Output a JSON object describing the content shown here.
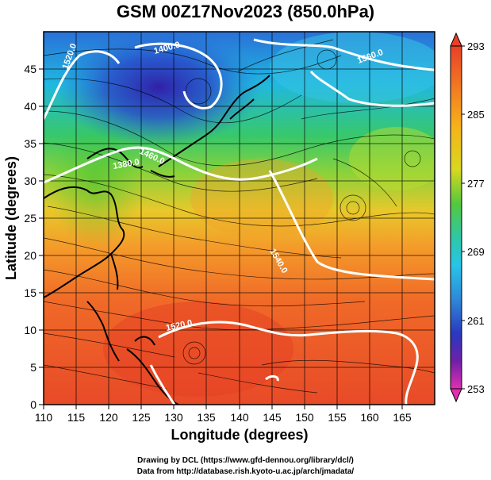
{
  "title": "GSM 00Z17Nov2023 (850.0hPa)",
  "xlabel": "Longitude (degrees)",
  "ylabel": "Latitude  (degrees)",
  "xticks": [
    "110",
    "115",
    "120",
    "125",
    "130",
    "135",
    "140",
    "145",
    "150",
    "155",
    "160",
    "165"
  ],
  "yticks": [
    "0",
    "5",
    "10",
    "15",
    "20",
    "25",
    "30",
    "35",
    "40",
    "45"
  ],
  "colorbar": {
    "ticks": [
      "293",
      "285",
      "277",
      "269",
      "261",
      "253"
    ],
    "colors": [
      "#e8402a",
      "#f07a22",
      "#f6b51a",
      "#d8d820",
      "#59c83a",
      "#2fc8a8",
      "#26c6e6",
      "#2e8cd8",
      "#2a3cc0",
      "#7a20a8",
      "#e030b0"
    ]
  },
  "contour_labels": [
    "1520.0",
    "1400.0",
    "1560.0",
    "1460.0",
    "1380.0",
    "1540.0",
    "1520.0"
  ],
  "credits": {
    "line1": "Drawing by DCL (https://www.gfd-dennou.org/library/dcl/)",
    "line2": "Data from http://database.rish.kyoto-u.ac.jp/arch/jmadata/"
  },
  "map_data": {
    "field": "temperature",
    "range": [
      253,
      293
    ],
    "lon_range": [
      110,
      170
    ],
    "lat_range": [
      0,
      50
    ],
    "contour_field": "geopotential height",
    "streamlines": true,
    "grid": true
  }
}
